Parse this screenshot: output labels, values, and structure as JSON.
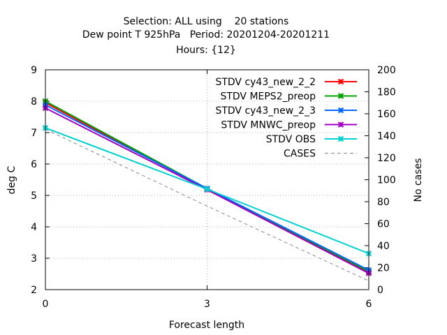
{
  "chart_data": {
    "type": "line",
    "title_lines": [
      "Selection: ALL using    20 stations",
      "Dew point T 925hPa   Period: 20201204-20201211",
      "Hours: {12}"
    ],
    "xlabel": "Forecast length",
    "ylabel": "deg C",
    "y2label": "No cases",
    "x": [
      0,
      3,
      6
    ],
    "xlim": [
      0,
      6
    ],
    "ylim": [
      2,
      9
    ],
    "y2lim": [
      0,
      200
    ],
    "xticks": [
      "0",
      "3",
      "6"
    ],
    "yticks": [
      "2",
      "3",
      "4",
      "5",
      "6",
      "7",
      "8",
      "9"
    ],
    "y2ticks": [
      "0",
      "20",
      "40",
      "60",
      "80",
      "100",
      "120",
      "140",
      "160",
      "180",
      "200"
    ],
    "grid": true,
    "legend_position": "top-right",
    "series": [
      {
        "name": "STDV cy43_new_2_2",
        "color": "#ff0000",
        "axis": "y",
        "values": [
          7.95,
          5.2,
          2.55
        ]
      },
      {
        "name": "STDV MEPS2_preop",
        "color": "#00a000",
        "axis": "y",
        "values": [
          8.0,
          5.22,
          2.58
        ]
      },
      {
        "name": "STDV cy43_new_2_3",
        "color": "#0066ff",
        "axis": "y",
        "values": [
          7.88,
          5.22,
          2.62
        ]
      },
      {
        "name": "STDV MNWC_preop",
        "color": "#a000c0",
        "axis": "y",
        "values": [
          7.78,
          5.18,
          2.52
        ]
      },
      {
        "name": "STDV OBS",
        "color": "#00d0d0",
        "axis": "y",
        "values": [
          7.15,
          5.2,
          3.15
        ]
      },
      {
        "name": "CASES",
        "color": "#888888",
        "axis": "y2",
        "dashed": true,
        "values": [
          146,
          76,
          8
        ]
      }
    ]
  }
}
